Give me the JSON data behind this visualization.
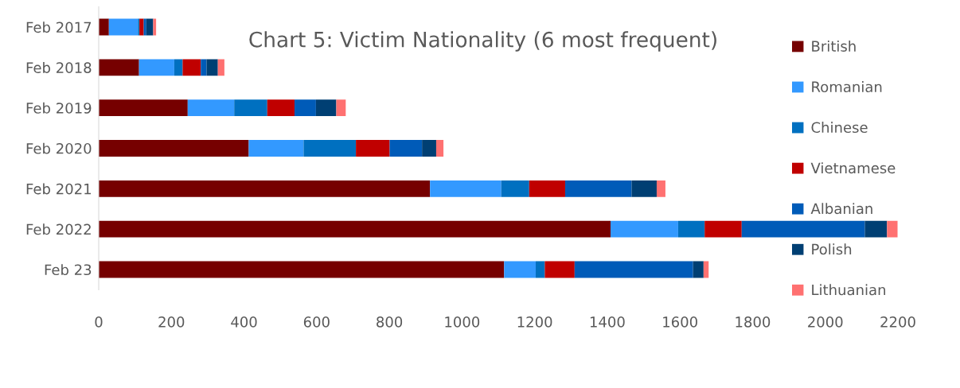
{
  "chart_data": {
    "type": "bar",
    "orientation": "horizontal",
    "stacked": true,
    "title": "Chart 5: Victim Nationality (6 most frequent)",
    "categories": [
      "Feb 2017",
      "Feb 2018",
      "Feb 2019",
      "Feb 2020",
      "Feb 2021",
      "Feb 2022",
      "Feb 23"
    ],
    "series": [
      {
        "name": "British",
        "color": "#760000",
        "values": [
          28,
          111,
          245,
          413,
          912,
          1409,
          1116
        ]
      },
      {
        "name": "Romanian",
        "color": "#3399ff",
        "values": [
          80,
          97,
          128,
          151,
          196,
          186,
          87
        ]
      },
      {
        "name": "Chinese",
        "color": "#0070c0",
        "values": [
          4,
          23,
          91,
          144,
          77,
          73,
          25
        ]
      },
      {
        "name": "Vietnamese",
        "color": "#c00000",
        "values": [
          12,
          50,
          75,
          93,
          99,
          102,
          82
        ]
      },
      {
        "name": "Albanian",
        "color": "#005bb8",
        "values": [
          7,
          16,
          59,
          89,
          183,
          339,
          326
        ]
      },
      {
        "name": "Polish",
        "color": "#003f73",
        "values": [
          19,
          31,
          56,
          39,
          69,
          61,
          29
        ]
      },
      {
        "name": "Lithuanian",
        "color": "#ff7171",
        "values": [
          8,
          18,
          26,
          20,
          24,
          29,
          14
        ]
      }
    ],
    "xlim": [
      0,
      2200
    ],
    "xticks": [
      0,
      200,
      400,
      600,
      800,
      1000,
      1200,
      1400,
      1600,
      1800,
      2000,
      2200
    ],
    "grid": false,
    "legend": "right"
  }
}
